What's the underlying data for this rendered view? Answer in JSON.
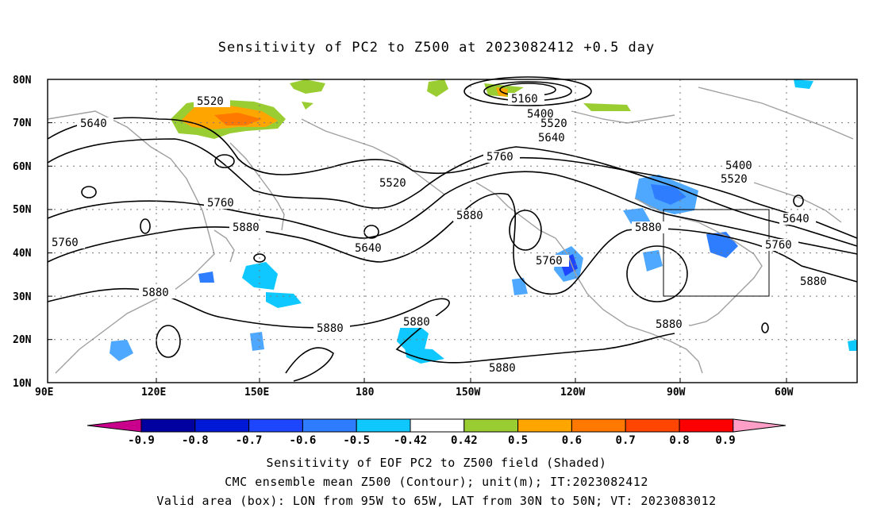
{
  "title": "Sensitivity of PC2 to Z500 at 2023082412 +0.5 day",
  "axes": {
    "lat_labels": [
      "80N",
      "70N",
      "60N",
      "50N",
      "40N",
      "30N",
      "20N",
      "10N"
    ],
    "lon_labels": [
      "90E",
      "120E",
      "150E",
      "180",
      "150W",
      "120W",
      "90W",
      "60W"
    ]
  },
  "contour_labels": [
    "5520",
    "5640",
    "5760",
    "5880",
    "5160",
    "5400",
    "5520",
    "5640",
    "5400",
    "5520",
    "5640",
    "5760",
    "5880",
    "5520",
    "5760",
    "5880",
    "5640",
    "5760",
    "5880",
    "5880",
    "5880",
    "5880",
    "5880",
    "5760"
  ],
  "colorbar": {
    "labels": [
      "-0.9",
      "-0.8",
      "-0.7",
      "-0.6",
      "-0.5",
      "-0.42",
      "0.42",
      "0.5",
      "0.6",
      "0.7",
      "0.8",
      "0.9"
    ],
    "colors": [
      "#c8008c",
      "#0000a0",
      "#0019d6",
      "#1e46ff",
      "#2f7dff",
      "#4ea8ff",
      "#0fc8ff",
      "#ffffff",
      "#9acd32",
      "#ffa500",
      "#ff7800",
      "#ff4600",
      "#ff0000",
      "#ff9fc8"
    ]
  },
  "box": {
    "lon_west": "95W",
    "lon_east": "65W",
    "lat_south": "30N",
    "lat_north": "50N"
  },
  "captions": [
    "Sensitivity of EOF PC2 to Z500 field (Shaded)",
    "CMC ensemble mean Z500 (Contour); unit(m); IT:2023082412",
    "Valid area (box): LON from 95W to 65W, LAT from 30N to 50N; VT: 2023083012"
  ]
}
